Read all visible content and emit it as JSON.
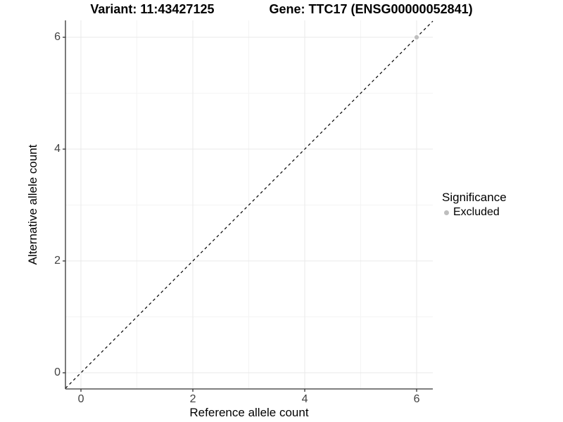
{
  "chart_data": {
    "type": "scatter",
    "title_left": "Variant: 11:43427125",
    "title_right": "Gene: TTC17 (ENSG00000052841)",
    "xlabel": "Reference allele count",
    "ylabel": "Alternative allele count",
    "x_major_ticks": [
      0,
      2,
      4,
      6
    ],
    "x_minor_ticks": [
      1,
      3,
      5
    ],
    "y_major_ticks": [
      0,
      2,
      4,
      6
    ],
    "y_minor_ticks": [
      1,
      3,
      5
    ],
    "xlim": [
      -0.277,
      6.289
    ],
    "ylim": [
      -0.289,
      6.302
    ],
    "grid": true,
    "identity_line": {
      "slope": 1,
      "intercept": 0,
      "style": "dashed",
      "color": "#000000"
    },
    "points": [
      {
        "x": 6,
        "y": 6,
        "series": "Excluded",
        "color": "#bebebe"
      }
    ],
    "legend": {
      "title": "Significance",
      "position": "right",
      "items": [
        {
          "label": "Excluded",
          "color": "#bebebe",
          "marker": "circle"
        }
      ]
    },
    "colors": {
      "background": "#ffffff",
      "grid_major": "#e9e9e9",
      "grid_minor": "#f4f4f4",
      "axis_line": "#333333",
      "tick_mark": "#333333",
      "tick_text": "#404040",
      "point": "#bebebe"
    }
  }
}
